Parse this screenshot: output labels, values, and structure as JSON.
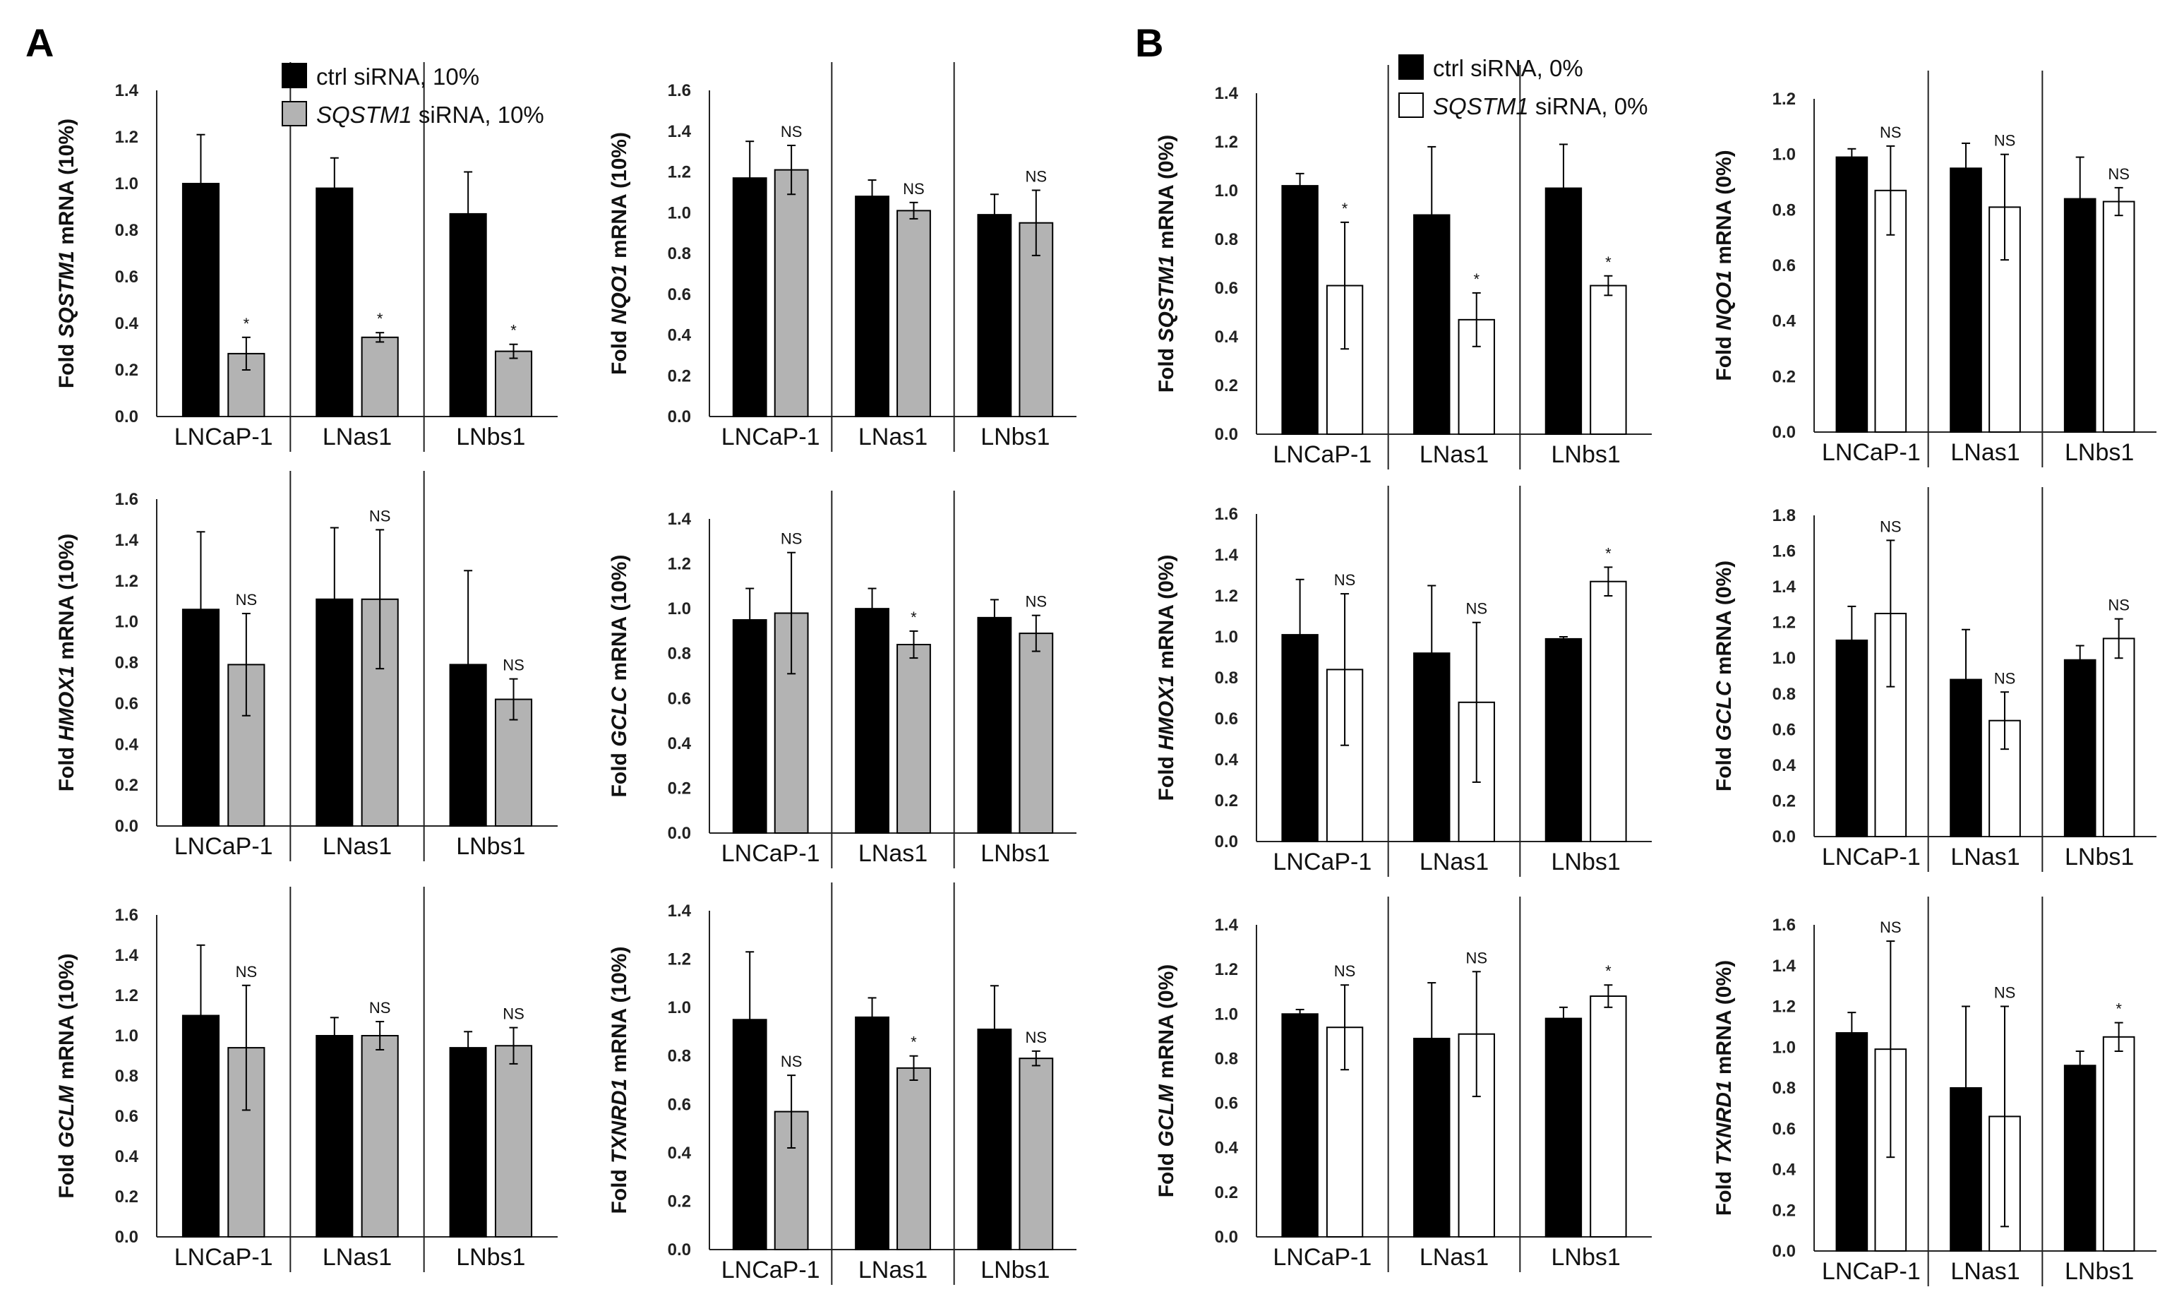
{
  "panel_labels": [
    "A",
    "B"
  ],
  "legends": [
    {
      "items": [
        {
          "pre": "ctrl siRNA, 10%",
          "it": "",
          "post": "",
          "color": "#000000"
        },
        {
          "pre": "",
          "it": "SQSTM1",
          "post": " siRNA, 10%",
          "color": "#b3b3b3"
        }
      ]
    },
    {
      "items": [
        {
          "pre": "ctrl siRNA, 0%",
          "it": "",
          "post": "",
          "color": "#000000"
        },
        {
          "pre": "",
          "it": "SQSTM1",
          "post": " siRNA, 0%",
          "color": "#ffffff"
        }
      ]
    }
  ],
  "chart_data": [
    {
      "type": "bar",
      "panel": "A",
      "ylabel": {
        "pre": "Fold ",
        "gene": "SQSTM1",
        "post": " mRNA (10%)"
      },
      "ylim": [
        0,
        1.4
      ],
      "yticks": [
        "0.0",
        "0.2",
        "0.4",
        "0.6",
        "0.8",
        "1.0",
        "1.2",
        "1.4"
      ],
      "categories": [
        "LNCaP-1",
        "LNas1",
        "LNbs1"
      ],
      "series": [
        {
          "values": [
            1.0,
            0.98,
            0.87
          ],
          "err": [
            0.21,
            0.13,
            0.18
          ],
          "color": "#000000"
        },
        {
          "values": [
            0.27,
            0.34,
            0.28
          ],
          "err": [
            0.07,
            0.02,
            0.03
          ],
          "color": "#b3b3b3"
        }
      ],
      "annotations": [
        "*",
        "*",
        "*"
      ]
    },
    {
      "type": "bar",
      "panel": "A",
      "ylabel": {
        "pre": "Fold ",
        "gene": "NQO1",
        "post": " mRNA (10%)"
      },
      "ylim": [
        0,
        1.6
      ],
      "yticks": [
        "0.0",
        "0.2",
        "0.4",
        "0.6",
        "0.8",
        "1.0",
        "1.2",
        "1.4",
        "1.6"
      ],
      "categories": [
        "LNCaP-1",
        "LNas1",
        "LNbs1"
      ],
      "series": [
        {
          "values": [
            1.17,
            1.08,
            0.99
          ],
          "err": [
            0.18,
            0.08,
            0.1
          ],
          "color": "#000000"
        },
        {
          "values": [
            1.21,
            1.01,
            0.95
          ],
          "err": [
            0.12,
            0.04,
            0.16
          ],
          "color": "#b3b3b3"
        }
      ],
      "annotations": [
        "NS",
        "NS",
        "NS"
      ]
    },
    {
      "type": "bar",
      "panel": "A",
      "ylabel": {
        "pre": "Fold ",
        "gene": "HMOX1",
        "post": " mRNA (10%)"
      },
      "ylim": [
        0,
        1.6
      ],
      "yticks": [
        "0.0",
        "0.2",
        "0.4",
        "0.6",
        "0.8",
        "1.0",
        "1.2",
        "1.4",
        "1.6"
      ],
      "categories": [
        "LNCaP-1",
        "LNas1",
        "LNbs1"
      ],
      "series": [
        {
          "values": [
            1.06,
            1.11,
            0.79
          ],
          "err": [
            0.38,
            0.35,
            0.46
          ],
          "color": "#000000"
        },
        {
          "values": [
            0.79,
            1.11,
            0.62
          ],
          "err": [
            0.25,
            0.34,
            0.1
          ],
          "color": "#b3b3b3"
        }
      ],
      "annotations": [
        "NS",
        "NS",
        "NS"
      ]
    },
    {
      "type": "bar",
      "panel": "A",
      "ylabel": {
        "pre": "Fold ",
        "gene": "GCLC",
        "post": " mRNA (10%)"
      },
      "ylim": [
        0,
        1.4
      ],
      "yticks": [
        "0.0",
        "0.2",
        "0.4",
        "0.6",
        "0.8",
        "1.0",
        "1.2",
        "1.4"
      ],
      "categories": [
        "LNCaP-1",
        "LNas1",
        "LNbs1"
      ],
      "series": [
        {
          "values": [
            0.95,
            1.0,
            0.96
          ],
          "err": [
            0.14,
            0.09,
            0.08
          ],
          "color": "#000000"
        },
        {
          "values": [
            0.98,
            0.84,
            0.89
          ],
          "err": [
            0.27,
            0.06,
            0.08
          ],
          "color": "#b3b3b3"
        }
      ],
      "annotations": [
        "NS",
        "*",
        "NS"
      ]
    },
    {
      "type": "bar",
      "panel": "A",
      "ylabel": {
        "pre": "Fold ",
        "gene": "GCLM",
        "post": " mRNA (10%)"
      },
      "ylim": [
        0,
        1.6
      ],
      "yticks": [
        "0.0",
        "0.2",
        "0.4",
        "0.6",
        "0.8",
        "1.0",
        "1.2",
        "1.4",
        "1.6"
      ],
      "categories": [
        "LNCaP-1",
        "LNas1",
        "LNbs1"
      ],
      "series": [
        {
          "values": [
            1.1,
            1.0,
            0.94
          ],
          "err": [
            0.35,
            0.09,
            0.08
          ],
          "color": "#000000"
        },
        {
          "values": [
            0.94,
            1.0,
            0.95
          ],
          "err": [
            0.31,
            0.07,
            0.09
          ],
          "color": "#b3b3b3"
        }
      ],
      "annotations": [
        "NS",
        "NS",
        "NS"
      ]
    },
    {
      "type": "bar",
      "panel": "A",
      "ylabel": {
        "pre": "Fold ",
        "gene": "TXNRD1",
        "post": " mRNA (10%)"
      },
      "ylim": [
        0,
        1.4
      ],
      "yticks": [
        "0.0",
        "0.2",
        "0.4",
        "0.6",
        "0.8",
        "1.0",
        "1.2",
        "1.4"
      ],
      "categories": [
        "LNCaP-1",
        "LNas1",
        "LNbs1"
      ],
      "series": [
        {
          "values": [
            0.95,
            0.96,
            0.91
          ],
          "err": [
            0.28,
            0.08,
            0.18
          ],
          "color": "#000000"
        },
        {
          "values": [
            0.57,
            0.75,
            0.79
          ],
          "err": [
            0.15,
            0.05,
            0.03
          ],
          "color": "#b3b3b3"
        }
      ],
      "annotations": [
        "NS",
        "*",
        "NS"
      ]
    },
    {
      "type": "bar",
      "panel": "B",
      "ylabel": {
        "pre": "Fold ",
        "gene": "SQSTM1",
        "post": " mRNA (0%)"
      },
      "ylim": [
        0,
        1.4
      ],
      "yticks": [
        "0.0",
        "0.2",
        "0.4",
        "0.6",
        "0.8",
        "1.0",
        "1.2",
        "1.4"
      ],
      "categories": [
        "LNCaP-1",
        "LNas1",
        "LNbs1"
      ],
      "series": [
        {
          "values": [
            1.02,
            0.9,
            1.01
          ],
          "err": [
            0.05,
            0.28,
            0.18
          ],
          "color": "#000000"
        },
        {
          "values": [
            0.61,
            0.47,
            0.61
          ],
          "err": [
            0.26,
            0.11,
            0.04
          ],
          "color": "#ffffff"
        }
      ],
      "annotations": [
        "*",
        "*",
        "*"
      ]
    },
    {
      "type": "bar",
      "panel": "B",
      "ylabel": {
        "pre": "Fold ",
        "gene": "NQO1",
        "post": " mRNA (0%)"
      },
      "ylim": [
        0,
        1.2
      ],
      "yticks": [
        "0.0",
        "0.2",
        "0.4",
        "0.6",
        "0.8",
        "1.0",
        "1.2"
      ],
      "categories": [
        "LNCaP-1",
        "LNas1",
        "LNbs1"
      ],
      "series": [
        {
          "values": [
            0.99,
            0.95,
            0.84
          ],
          "err": [
            0.03,
            0.09,
            0.15
          ],
          "color": "#000000"
        },
        {
          "values": [
            0.87,
            0.81,
            0.83
          ],
          "err": [
            0.16,
            0.19,
            0.05
          ],
          "color": "#ffffff"
        }
      ],
      "annotations": [
        "NS",
        "NS",
        "NS"
      ]
    },
    {
      "type": "bar",
      "panel": "B",
      "ylabel": {
        "pre": "Fold ",
        "gene": "HMOX1",
        "post": " mRNA (0%)"
      },
      "ylim": [
        0,
        1.6
      ],
      "yticks": [
        "0.0",
        "0.2",
        "0.4",
        "0.6",
        "0.8",
        "1.0",
        "1.2",
        "1.4",
        "1.6"
      ],
      "categories": [
        "LNCaP-1",
        "LNas1",
        "LNbs1"
      ],
      "series": [
        {
          "values": [
            1.01,
            0.92,
            0.99
          ],
          "err": [
            0.27,
            0.33,
            0.01
          ],
          "color": "#000000"
        },
        {
          "values": [
            0.84,
            0.68,
            1.27
          ],
          "err": [
            0.37,
            0.39,
            0.07
          ],
          "color": "#ffffff"
        }
      ],
      "annotations": [
        "NS",
        "NS",
        "*"
      ]
    },
    {
      "type": "bar",
      "panel": "B",
      "ylabel": {
        "pre": "Fold ",
        "gene": "GCLC",
        "post": " mRNA (0%)"
      },
      "ylim": [
        0,
        1.8
      ],
      "yticks": [
        "0.0",
        "0.2",
        "0.4",
        "0.6",
        "0.8",
        "1.0",
        "1.2",
        "1.4",
        "1.6",
        "1.8"
      ],
      "categories": [
        "LNCaP-1",
        "LNas1",
        "LNbs1"
      ],
      "series": [
        {
          "values": [
            1.1,
            0.88,
            0.99
          ],
          "err": [
            0.19,
            0.28,
            0.08
          ],
          "color": "#000000"
        },
        {
          "values": [
            1.25,
            0.65,
            1.11
          ],
          "err": [
            0.41,
            0.16,
            0.11
          ],
          "color": "#ffffff"
        }
      ],
      "annotations": [
        "NS",
        "NS",
        "NS"
      ]
    },
    {
      "type": "bar",
      "panel": "B",
      "ylabel": {
        "pre": "Fold ",
        "gene": "GCLM",
        "post": " mRNA (0%)"
      },
      "ylim": [
        0,
        1.4
      ],
      "yticks": [
        "0.0",
        "0.2",
        "0.4",
        "0.6",
        "0.8",
        "1.0",
        "1.2",
        "1.4"
      ],
      "categories": [
        "LNCaP-1",
        "LNas1",
        "LNbs1"
      ],
      "series": [
        {
          "values": [
            1.0,
            0.89,
            0.98
          ],
          "err": [
            0.02,
            0.25,
            0.05
          ],
          "color": "#000000"
        },
        {
          "values": [
            0.94,
            0.91,
            1.08
          ],
          "err": [
            0.19,
            0.28,
            0.05
          ],
          "color": "#ffffff"
        }
      ],
      "annotations": [
        "NS",
        "NS",
        "*"
      ]
    },
    {
      "type": "bar",
      "panel": "B",
      "ylabel": {
        "pre": "Fold ",
        "gene": "TXNRD1",
        "post": " mRNA (0%)"
      },
      "ylim": [
        0,
        1.6
      ],
      "yticks": [
        "0.0",
        "0.2",
        "0.4",
        "0.6",
        "0.8",
        "1.0",
        "1.2",
        "1.4",
        "1.6"
      ],
      "categories": [
        "LNCaP-1",
        "LNas1",
        "LNbs1"
      ],
      "series": [
        {
          "values": [
            1.07,
            0.8,
            0.91
          ],
          "err": [
            0.1,
            0.4,
            0.07
          ],
          "color": "#000000"
        },
        {
          "values": [
            0.99,
            0.66,
            1.05
          ],
          "err": [
            0.53,
            0.54,
            0.07
          ],
          "color": "#ffffff"
        }
      ],
      "annotations": [
        "NS",
        "NS",
        "*"
      ]
    }
  ]
}
